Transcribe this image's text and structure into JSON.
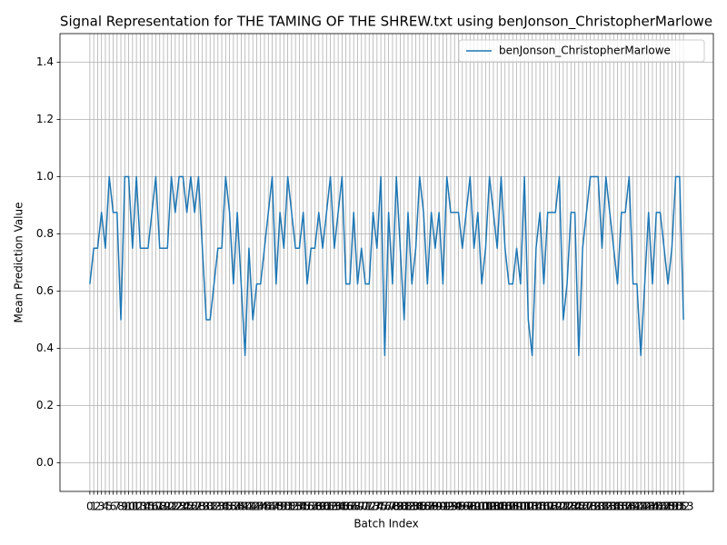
{
  "chart_data": {
    "type": "line",
    "title": "Signal Representation for THE TAMING OF THE SHREW.txt using benJonson_ChristopherMarlowe",
    "x_label": "Batch Index",
    "y_label": "Mean Prediction Value",
    "x": [
      0,
      1,
      2,
      3,
      4,
      5,
      6,
      7,
      8,
      9,
      10,
      11,
      12,
      13,
      14,
      15,
      16,
      17,
      18,
      19,
      20,
      21,
      22,
      23,
      24,
      25,
      26,
      27,
      28,
      29,
      30,
      31,
      32,
      33,
      34,
      35,
      36,
      37,
      38,
      39,
      40,
      41,
      42,
      43,
      44,
      45,
      46,
      47,
      48,
      49,
      50,
      51,
      52,
      53,
      54,
      55,
      56,
      57,
      58,
      59,
      60,
      61,
      62,
      63,
      64,
      65,
      66,
      67,
      68,
      69,
      70,
      71,
      72,
      73,
      74,
      75,
      76,
      77,
      78,
      79,
      80,
      81,
      82,
      83,
      84,
      85,
      86,
      87,
      88,
      89,
      90,
      91,
      92,
      93,
      94,
      95,
      96,
      97,
      98,
      99,
      100,
      101,
      102,
      103,
      104,
      105,
      106,
      107,
      108,
      109,
      110,
      111,
      112,
      113,
      114,
      115,
      116,
      117,
      118,
      119,
      120,
      121,
      122,
      123,
      124,
      125,
      126,
      127,
      128,
      129,
      130,
      131,
      132,
      133,
      134,
      135,
      136,
      137,
      138,
      139,
      140,
      141,
      142,
      143,
      144,
      145,
      146,
      147,
      148,
      149,
      150,
      151,
      152,
      153
    ],
    "series": [
      {
        "name": "benJonson_ChristopherMarlowe",
        "color": "#1f77b4",
        "values": [
          0.625,
          0.75,
          0.75,
          0.875,
          0.75,
          1.0,
          0.875,
          0.875,
          0.5,
          1.0,
          1.0,
          0.75,
          1.0,
          0.75,
          0.75,
          0.75,
          0.875,
          1.0,
          0.75,
          0.75,
          0.75,
          1.0,
          0.875,
          1.0,
          1.0,
          0.875,
          1.0,
          0.875,
          1.0,
          0.75,
          0.5,
          0.5,
          0.625,
          0.75,
          0.75,
          1.0,
          0.875,
          0.625,
          0.875,
          0.625,
          0.375,
          0.75,
          0.5,
          0.625,
          0.625,
          0.75,
          0.875,
          1.0,
          0.625,
          0.875,
          0.75,
          1.0,
          0.875,
          0.75,
          0.75,
          0.875,
          0.625,
          0.75,
          0.75,
          0.875,
          0.75,
          0.875,
          1.0,
          0.75,
          0.875,
          1.0,
          0.625,
          0.625,
          0.875,
          0.625,
          0.75,
          0.625,
          0.625,
          0.875,
          0.75,
          1.0,
          0.375,
          0.875,
          0.625,
          1.0,
          0.75,
          0.5,
          0.875,
          0.625,
          0.75,
          1.0,
          0.875,
          0.625,
          0.875,
          0.75,
          0.875,
          0.625,
          1.0,
          0.875,
          0.875,
          0.875,
          0.75,
          0.875,
          1.0,
          0.75,
          0.875,
          0.625,
          0.75,
          1.0,
          0.875,
          0.75,
          1.0,
          0.75,
          0.625,
          0.625,
          0.75,
          0.625,
          1.0,
          0.5,
          0.375,
          0.75,
          0.875,
          0.625,
          0.875,
          0.875,
          0.875,
          1.0,
          0.5,
          0.625,
          0.875,
          0.875,
          0.375,
          0.75,
          0.875,
          1.0,
          1.0,
          1.0,
          0.75,
          1.0,
          0.875,
          0.75,
          0.625,
          0.875,
          0.875,
          1.0,
          0.625,
          0.625,
          0.375,
          0.625,
          0.875,
          0.625,
          0.875,
          0.875,
          0.75,
          0.625,
          0.75,
          1.0,
          1.0,
          0.5
        ]
      }
    ],
    "xlim": [
      -7.7,
      160.7
    ],
    "xticks": [
      0,
      1,
      2,
      3,
      4,
      5,
      6,
      7,
      8,
      9,
      10,
      11,
      12,
      13,
      14,
      15,
      16,
      17,
      18,
      19,
      20,
      21,
      22,
      23,
      24,
      25,
      26,
      27,
      28,
      29,
      30,
      31,
      32,
      33,
      34,
      35,
      36,
      37,
      38,
      39,
      40,
      41,
      42,
      43,
      44,
      45,
      46,
      47,
      48,
      49,
      50,
      51,
      52,
      53,
      54,
      55,
      56,
      57,
      58,
      59,
      60,
      61,
      62,
      63,
      64,
      65,
      66,
      67,
      68,
      69,
      70,
      71,
      72,
      73,
      74,
      75,
      76,
      77,
      78,
      79,
      80,
      81,
      82,
      83,
      84,
      85,
      86,
      87,
      88,
      89,
      90,
      91,
      92,
      93,
      94,
      95,
      96,
      97,
      98,
      99,
      100,
      101,
      102,
      103,
      104,
      105,
      106,
      107,
      108,
      109,
      110,
      111,
      112,
      113,
      114,
      115,
      116,
      117,
      118,
      119,
      120,
      121,
      122,
      123,
      124,
      125,
      126,
      127,
      128,
      129,
      130,
      131,
      132,
      133,
      134,
      135,
      136,
      137,
      138,
      139,
      140,
      141,
      142,
      143,
      144,
      145,
      146,
      147,
      148,
      149,
      150,
      151,
      152,
      153
    ],
    "ylim": [
      -0.1,
      1.5
    ],
    "yticks": [
      {
        "value": 0,
        "label": "0.0"
      },
      0.2,
      0.4,
      0.6,
      0.8,
      {
        "value": 1,
        "label": "1.0"
      },
      1.2,
      1.4
    ],
    "grid": true,
    "legend": "upper right"
  }
}
